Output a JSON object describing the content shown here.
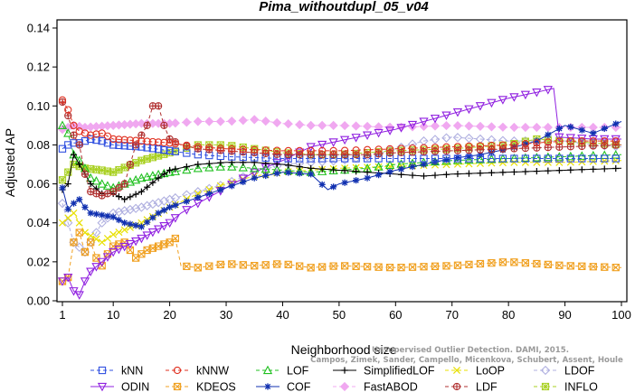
{
  "chart_data": {
    "type": "line",
    "title": "Pima_withoutdupl_05_v04",
    "xlabel": "Neighborhood size",
    "ylabel": "Adjusted AP",
    "xlim": [
      1,
      100
    ],
    "ylim": [
      0,
      0.14
    ],
    "xticks": [
      1,
      10,
      20,
      30,
      40,
      50,
      60,
      70,
      80,
      90,
      100
    ],
    "yticks": [
      0.0,
      0.02,
      0.04,
      0.06,
      0.08,
      0.1,
      0.12,
      0.14
    ],
    "ytick_labels": [
      "0.00",
      "0.02",
      "0.04",
      "0.06",
      "0.08",
      "0.10",
      "0.12",
      "0.14"
    ],
    "legend_position": "bottom",
    "credit_lines": [
      "Unsupervised Outlier Detection. DAMI, 2015.",
      "Campos, Zimek, Sander, Campello, Micenkova, Schubert, Assent, Houle"
    ],
    "series": [
      {
        "name": "kNN",
        "color": "#3050e0",
        "marker": "square",
        "dash": "4,3",
        "points": [
          [
            1,
            0.078
          ],
          [
            2,
            0.08
          ],
          [
            3,
            0.081
          ],
          [
            4,
            0.081
          ],
          [
            5,
            0.082
          ],
          [
            6,
            0.083
          ],
          [
            8,
            0.082
          ],
          [
            10,
            0.08
          ],
          [
            15,
            0.079
          ],
          [
            20,
            0.077
          ],
          [
            25,
            0.075
          ],
          [
            30,
            0.074
          ],
          [
            40,
            0.073
          ],
          [
            50,
            0.073
          ],
          [
            60,
            0.073
          ],
          [
            70,
            0.073
          ],
          [
            80,
            0.073
          ],
          [
            90,
            0.073
          ],
          [
            100,
            0.073
          ]
        ]
      },
      {
        "name": "kNNW",
        "color": "#e03020",
        "marker": "circle",
        "dash": "4,3",
        "points": [
          [
            1,
            0.103
          ],
          [
            2,
            0.098
          ],
          [
            3,
            0.09
          ],
          [
            4,
            0.087
          ],
          [
            5,
            0.086
          ],
          [
            6,
            0.085
          ],
          [
            8,
            0.086
          ],
          [
            10,
            0.083
          ],
          [
            15,
            0.082
          ],
          [
            20,
            0.081
          ],
          [
            25,
            0.079
          ],
          [
            30,
            0.078
          ],
          [
            40,
            0.077
          ],
          [
            50,
            0.077
          ],
          [
            60,
            0.078
          ],
          [
            70,
            0.079
          ],
          [
            80,
            0.08
          ],
          [
            90,
            0.082
          ],
          [
            100,
            0.082
          ]
        ]
      },
      {
        "name": "LOF",
        "color": "#20c020",
        "marker": "triangle-up",
        "dash": "4,3",
        "points": [
          [
            1,
            0.09
          ],
          [
            2,
            0.086
          ],
          [
            3,
            0.075
          ],
          [
            4,
            0.072
          ],
          [
            5,
            0.068
          ],
          [
            6,
            0.063
          ],
          [
            8,
            0.06
          ],
          [
            10,
            0.058
          ],
          [
            12,
            0.06
          ],
          [
            15,
            0.063
          ],
          [
            20,
            0.066
          ],
          [
            25,
            0.068
          ],
          [
            30,
            0.069
          ],
          [
            35,
            0.068
          ],
          [
            40,
            0.067
          ],
          [
            45,
            0.066
          ],
          [
            50,
            0.067
          ],
          [
            55,
            0.068
          ],
          [
            60,
            0.07
          ],
          [
            70,
            0.072
          ],
          [
            80,
            0.073
          ],
          [
            90,
            0.074
          ],
          [
            100,
            0.075
          ]
        ]
      },
      {
        "name": "SimplifiedLOF",
        "color": "#000000",
        "marker": "plus",
        "dash": "",
        "points": [
          [
            1,
            0.057
          ],
          [
            2,
            0.06
          ],
          [
            3,
            0.075
          ],
          [
            4,
            0.07
          ],
          [
            5,
            0.065
          ],
          [
            6,
            0.06
          ],
          [
            8,
            0.055
          ],
          [
            10,
            0.055
          ],
          [
            12,
            0.052
          ],
          [
            15,
            0.056
          ],
          [
            18,
            0.063
          ],
          [
            20,
            0.067
          ],
          [
            25,
            0.07
          ],
          [
            30,
            0.071
          ],
          [
            35,
            0.071
          ],
          [
            40,
            0.07
          ],
          [
            45,
            0.068
          ],
          [
            50,
            0.067
          ],
          [
            55,
            0.066
          ],
          [
            60,
            0.065
          ],
          [
            65,
            0.064
          ],
          [
            70,
            0.065
          ],
          [
            80,
            0.066
          ],
          [
            90,
            0.067
          ],
          [
            100,
            0.068
          ]
        ]
      },
      {
        "name": "LoOP",
        "color": "#e8e000",
        "marker": "x",
        "dash": "4,3",
        "points": [
          [
            1,
            0.04
          ],
          [
            3,
            0.045
          ],
          [
            5,
            0.035
          ],
          [
            8,
            0.03
          ],
          [
            10,
            0.034
          ],
          [
            15,
            0.04
          ],
          [
            20,
            0.048
          ],
          [
            25,
            0.055
          ],
          [
            30,
            0.06
          ],
          [
            35,
            0.064
          ],
          [
            40,
            0.066
          ],
          [
            45,
            0.067
          ],
          [
            50,
            0.068
          ],
          [
            60,
            0.069
          ],
          [
            70,
            0.07
          ],
          [
            80,
            0.071
          ],
          [
            90,
            0.071
          ],
          [
            100,
            0.072
          ]
        ]
      },
      {
        "name": "LDOF",
        "color": "#b0b0e0",
        "marker": "diamond",
        "dash": "4,3",
        "points": [
          [
            1,
            0.05
          ],
          [
            3,
            0.03
          ],
          [
            5,
            0.025
          ],
          [
            8,
            0.04
          ],
          [
            10,
            0.045
          ],
          [
            15,
            0.048
          ],
          [
            20,
            0.052
          ],
          [
            25,
            0.056
          ],
          [
            30,
            0.06
          ],
          [
            35,
            0.066
          ],
          [
            40,
            0.07
          ],
          [
            45,
            0.071
          ],
          [
            50,
            0.072
          ],
          [
            55,
            0.074
          ],
          [
            60,
            0.078
          ],
          [
            65,
            0.082
          ],
          [
            70,
            0.084
          ],
          [
            75,
            0.083
          ],
          [
            80,
            0.082
          ],
          [
            85,
            0.082
          ],
          [
            90,
            0.082
          ],
          [
            95,
            0.08
          ],
          [
            100,
            0.079
          ]
        ]
      },
      {
        "name": "ODIN",
        "color": "#9020e0",
        "marker": "triangle-down",
        "dash": "",
        "points": [
          [
            1,
            0.01
          ],
          [
            2,
            0.012
          ],
          [
            3,
            0.005
          ],
          [
            4,
            0.003
          ],
          [
            5,
            0.01
          ],
          [
            6,
            0.015
          ],
          [
            8,
            0.02
          ],
          [
            10,
            0.025
          ],
          [
            15,
            0.032
          ],
          [
            20,
            0.04
          ],
          [
            22,
            0.045
          ],
          [
            25,
            0.05
          ],
          [
            30,
            0.058
          ],
          [
            35,
            0.066
          ],
          [
            40,
            0.072
          ],
          [
            45,
            0.079
          ],
          [
            50,
            0.082
          ],
          [
            55,
            0.085
          ],
          [
            60,
            0.088
          ],
          [
            65,
            0.092
          ],
          [
            70,
            0.096
          ],
          [
            75,
            0.1
          ],
          [
            80,
            0.104
          ],
          [
            85,
            0.107
          ],
          [
            88,
            0.109
          ],
          [
            89,
            0.084
          ],
          [
            95,
            0.083
          ],
          [
            100,
            0.083
          ]
        ]
      },
      {
        "name": "KDEOS",
        "color": "#f0a020",
        "marker": "square-x",
        "dash": "4,3",
        "points": [
          [
            1,
            0.01
          ],
          [
            2,
            0.012
          ],
          [
            3,
            0.03
          ],
          [
            4,
            0.035
          ],
          [
            5,
            0.025
          ],
          [
            6,
            0.03
          ],
          [
            7,
            0.022
          ],
          [
            8,
            0.018
          ],
          [
            9,
            0.024
          ],
          [
            10,
            0.028
          ],
          [
            12,
            0.03
          ],
          [
            14,
            0.022
          ],
          [
            16,
            0.026
          ],
          [
            18,
            0.028
          ],
          [
            20,
            0.03
          ],
          [
            21,
            0.032
          ],
          [
            22,
            0.018
          ],
          [
            25,
            0.017
          ],
          [
            30,
            0.019
          ],
          [
            35,
            0.018
          ],
          [
            40,
            0.019
          ],
          [
            45,
            0.017
          ],
          [
            50,
            0.018
          ],
          [
            60,
            0.017
          ],
          [
            70,
            0.018
          ],
          [
            80,
            0.02
          ],
          [
            90,
            0.018
          ],
          [
            100,
            0.017
          ]
        ]
      },
      {
        "name": "COF",
        "color": "#1030b0",
        "marker": "asterisk",
        "dash": "",
        "points": [
          [
            1,
            0.058
          ],
          [
            2,
            0.047
          ],
          [
            3,
            0.05
          ],
          [
            4,
            0.052
          ],
          [
            5,
            0.048
          ],
          [
            6,
            0.045
          ],
          [
            8,
            0.044
          ],
          [
            10,
            0.043
          ],
          [
            12,
            0.04
          ],
          [
            15,
            0.038
          ],
          [
            18,
            0.045
          ],
          [
            20,
            0.048
          ],
          [
            25,
            0.053
          ],
          [
            30,
            0.058
          ],
          [
            35,
            0.063
          ],
          [
            40,
            0.066
          ],
          [
            45,
            0.065
          ],
          [
            48,
            0.057
          ],
          [
            50,
            0.06
          ],
          [
            55,
            0.063
          ],
          [
            60,
            0.067
          ],
          [
            65,
            0.07
          ],
          [
            70,
            0.073
          ],
          [
            75,
            0.075
          ],
          [
            80,
            0.078
          ],
          [
            85,
            0.082
          ],
          [
            90,
            0.09
          ],
          [
            95,
            0.086
          ],
          [
            100,
            0.092
          ]
        ]
      },
      {
        "name": "FastABOD",
        "color": "#f0a8f0",
        "marker": "diamond-filled",
        "dash": "4,3",
        "points": [
          [
            1,
            0.088
          ],
          [
            3,
            0.09
          ],
          [
            5,
            0.089
          ],
          [
            10,
            0.09
          ],
          [
            15,
            0.091
          ],
          [
            20,
            0.091
          ],
          [
            25,
            0.092
          ],
          [
            30,
            0.092
          ],
          [
            35,
            0.093
          ],
          [
            40,
            0.091
          ],
          [
            45,
            0.09
          ],
          [
            50,
            0.09
          ],
          [
            60,
            0.089
          ],
          [
            70,
            0.09
          ],
          [
            80,
            0.089
          ],
          [
            90,
            0.089
          ],
          [
            100,
            0.089
          ]
        ]
      },
      {
        "name": "LDF",
        "color": "#b03030",
        "marker": "circle-plus",
        "dash": "4,3",
        "points": [
          [
            1,
            0.102
          ],
          [
            2,
            0.095
          ],
          [
            3,
            0.085
          ],
          [
            4,
            0.08
          ],
          [
            5,
            0.065
          ],
          [
            6,
            0.056
          ],
          [
            8,
            0.054
          ],
          [
            10,
            0.056
          ],
          [
            12,
            0.06
          ],
          [
            14,
            0.08
          ],
          [
            16,
            0.09
          ],
          [
            17,
            0.1
          ],
          [
            18,
            0.1
          ],
          [
            19,
            0.09
          ],
          [
            20,
            0.083
          ],
          [
            22,
            0.08
          ],
          [
            25,
            0.078
          ],
          [
            30,
            0.077
          ],
          [
            35,
            0.076
          ],
          [
            40,
            0.075
          ],
          [
            45,
            0.075
          ],
          [
            50,
            0.075
          ],
          [
            55,
            0.075
          ],
          [
            60,
            0.076
          ],
          [
            70,
            0.077
          ],
          [
            80,
            0.078
          ],
          [
            90,
            0.079
          ],
          [
            100,
            0.08
          ]
        ]
      },
      {
        "name": "INFLO",
        "color": "#a8d020",
        "marker": "square-star",
        "dash": "4,3",
        "points": [
          [
            1,
            0.062
          ],
          [
            3,
            0.07
          ],
          [
            5,
            0.068
          ],
          [
            8,
            0.067
          ],
          [
            10,
            0.066
          ],
          [
            15,
            0.072
          ],
          [
            20,
            0.076
          ],
          [
            25,
            0.08
          ],
          [
            30,
            0.08
          ],
          [
            35,
            0.078
          ],
          [
            40,
            0.076
          ],
          [
            45,
            0.075
          ],
          [
            50,
            0.075
          ],
          [
            60,
            0.077
          ],
          [
            70,
            0.078
          ],
          [
            80,
            0.08
          ],
          [
            85,
            0.083
          ],
          [
            90,
            0.082
          ],
          [
            95,
            0.081
          ],
          [
            100,
            0.08
          ]
        ]
      }
    ]
  }
}
